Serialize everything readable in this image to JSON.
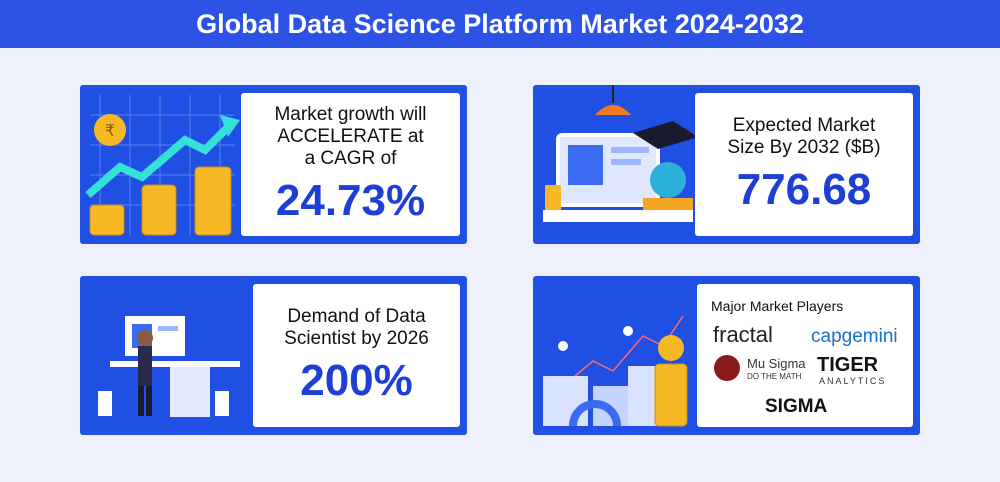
{
  "header": {
    "title": "Global Data Science Platform Market 2024-2032"
  },
  "cards": [
    {
      "lines": [
        "Market growth will",
        "ACCELERATE at",
        "a CAGR of"
      ],
      "value": "24.73%"
    },
    {
      "lines": [
        "Expected Market",
        "Size By 2032 ($B)"
      ],
      "value": "776.68"
    },
    {
      "lines": [
        "Demand of Data",
        "Scientist by 2026"
      ],
      "value": "200%"
    },
    {
      "heading": "Major Market Players",
      "players": [
        "fractal",
        "capgemini",
        "Mu Sigma",
        "DO THE MATH",
        "TIGER",
        "ANALYTICS",
        "SIGMA"
      ]
    }
  ]
}
